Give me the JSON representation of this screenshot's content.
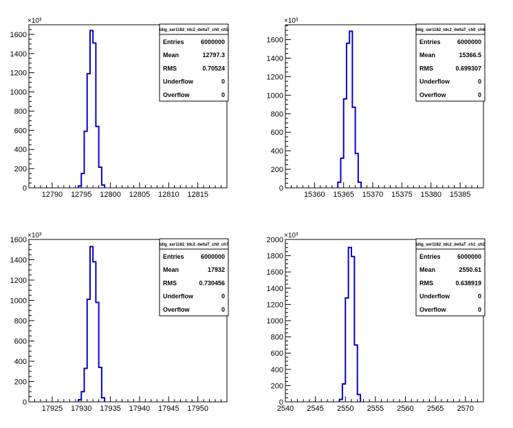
{
  "chart_data": [
    {
      "type": "bar",
      "title": "tdig_ser1182_tdc2_deltaT_ch0_ch5",
      "xlim": [
        12786,
        12820
      ],
      "ylim": [
        0,
        1700
      ],
      "x_ticks": [
        12790,
        12795,
        12800,
        12805,
        12810,
        12815
      ],
      "y_ticks": [
        0,
        200,
        400,
        600,
        800,
        1000,
        1200,
        1400,
        1600
      ],
      "y_multiplier": "×10³",
      "bin_width": 0.5,
      "bins": [
        [
          12794.5,
          20
        ],
        [
          12795.0,
          150
        ],
        [
          12795.5,
          590
        ],
        [
          12796.0,
          1190
        ],
        [
          12796.5,
          1640
        ],
        [
          12797.0,
          1510
        ],
        [
          12797.5,
          640
        ],
        [
          12798.0,
          215
        ],
        [
          12798.5,
          30
        ]
      ],
      "stats": [
        [
          "Entries",
          "6000000"
        ],
        [
          "Mean",
          "12797.3"
        ],
        [
          "RMS",
          "0.70524"
        ],
        [
          "Underflow",
          "0"
        ],
        [
          "Overflow",
          "0"
        ]
      ]
    },
    {
      "type": "bar",
      "title": "tdig_ser1182_tdc2_deltaT_ch0_ch6",
      "xlim": [
        15355,
        15389
      ],
      "ylim": [
        0,
        1760
      ],
      "x_ticks": [
        15360,
        15365,
        15370,
        15375,
        15380,
        15385
      ],
      "y_ticks": [
        0,
        200,
        400,
        600,
        800,
        1000,
        1200,
        1400,
        1600
      ],
      "y_multiplier": "×10³",
      "bin_width": 0.5,
      "bins": [
        [
          15364.0,
          60
        ],
        [
          15364.5,
          320
        ],
        [
          15365.0,
          960
        ],
        [
          15365.5,
          1560
        ],
        [
          15366.0,
          1690
        ],
        [
          15366.5,
          870
        ],
        [
          15367.0,
          370
        ],
        [
          15367.5,
          60
        ]
      ],
      "stats": [
        [
          "Entries",
          "6000000"
        ],
        [
          "Mean",
          "15366.5"
        ],
        [
          "RMS",
          "0.699307"
        ],
        [
          "Underflow",
          "0"
        ],
        [
          "Overflow",
          "0"
        ]
      ]
    },
    {
      "type": "bar",
      "title": "tdig_ser1182_tdc2_deltaT_ch0_ch7",
      "xlim": [
        17921,
        17955
      ],
      "ylim": [
        0,
        1600
      ],
      "x_ticks": [
        17925,
        17930,
        17935,
        17940,
        17945,
        17950
      ],
      "y_ticks": [
        0,
        200,
        400,
        600,
        800,
        1000,
        1200,
        1400,
        1600
      ],
      "y_multiplier": "×10³",
      "bin_width": 0.5,
      "bins": [
        [
          17929.5,
          20
        ],
        [
          17930.0,
          100
        ],
        [
          17930.5,
          330
        ],
        [
          17931.0,
          1010
        ],
        [
          17931.5,
          1530
        ],
        [
          17932.0,
          1380
        ],
        [
          17932.5,
          980
        ],
        [
          17933.0,
          340
        ],
        [
          17933.5,
          40
        ]
      ],
      "stats": [
        [
          "Entries",
          "6000000"
        ],
        [
          "Mean",
          "17932"
        ],
        [
          "RMS",
          "0.730456"
        ],
        [
          "Underflow",
          "0"
        ],
        [
          "Overflow",
          "0"
        ]
      ]
    },
    {
      "type": "bar",
      "title": "tdig_ser1182_tdc2_deltaT_ch1_ch2",
      "xlim": [
        2540,
        2573
      ],
      "ylim": [
        0,
        2000
      ],
      "x_ticks": [
        2540,
        2545,
        2550,
        2555,
        2560,
        2565,
        2570
      ],
      "y_ticks": [
        0,
        200,
        400,
        600,
        800,
        1000,
        1200,
        1400,
        1600,
        1800,
        2000
      ],
      "y_multiplier": "×10³",
      "bin_width": 0.5,
      "bins": [
        [
          2549.0,
          30
        ],
        [
          2549.5,
          220
        ],
        [
          2550.0,
          1280
        ],
        [
          2550.5,
          1900
        ],
        [
          2551.0,
          1790
        ],
        [
          2551.5,
          700
        ],
        [
          2552.0,
          90
        ]
      ],
      "stats": [
        [
          "Entries",
          "6000000"
        ],
        [
          "Mean",
          "2550.61"
        ],
        [
          "RMS",
          "0.638919"
        ],
        [
          "Underflow",
          "0"
        ],
        [
          "Overflow",
          "0"
        ]
      ]
    }
  ],
  "colors": {
    "histogram_line": "#0000cc",
    "axis": "#000000",
    "background": "#ffffff"
  }
}
